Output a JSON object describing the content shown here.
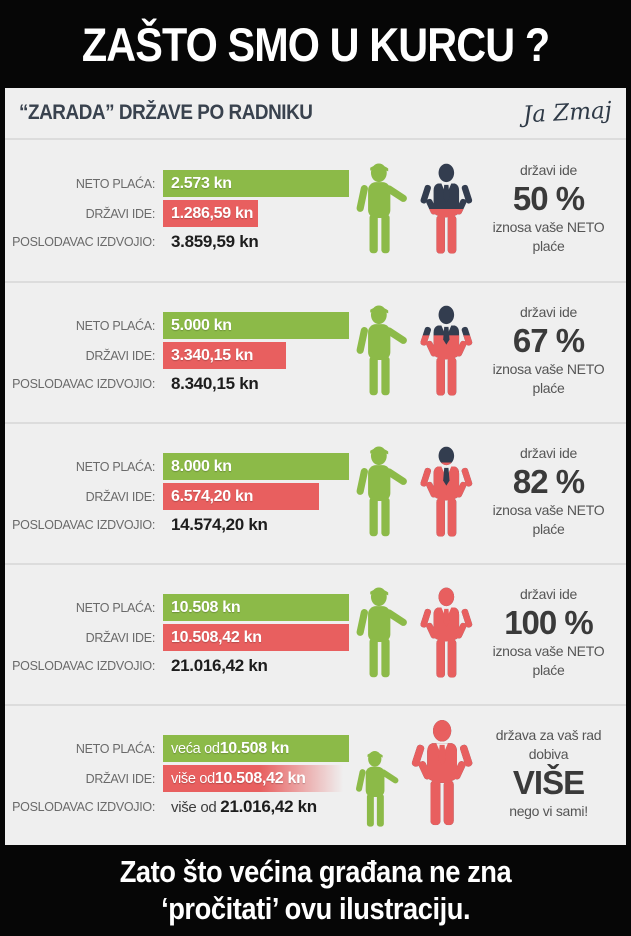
{
  "title": "ZAŠTO SMO U KURCU ?",
  "header": {
    "subtitle": "“ZARADA” DRŽAVE PO RADNIKU",
    "signature": "Ja Zmaj"
  },
  "row_labels": {
    "neto": "NETO PLAĆA:",
    "drzavi": "DRŽAVI IDE:",
    "poslodavac": "POSLODAVAC IZDVOJIO:"
  },
  "rows": [
    {
      "neto_prefix": "",
      "neto_value": "2.573 kn",
      "drzavi_prefix": "",
      "drzavi_value": "1.286,59 kn",
      "poslodavac_prefix": "",
      "poslodavac_value": "3.859,59 kn",
      "red_bar_pct": 51,
      "red_bar_fade": false,
      "figure_red_pct": 50,
      "worker_scale": 1,
      "state_scale": 1,
      "caption_top": "državi ide",
      "caption_big": "50 %",
      "caption_bottom": "iznosa vaše NETO plaće"
    },
    {
      "neto_prefix": "",
      "neto_value": "5.000 kn",
      "drzavi_prefix": "",
      "drzavi_value": "3.340,15 kn",
      "poslodavac_prefix": "",
      "poslodavac_value": "8.340,15 kn",
      "red_bar_pct": 66,
      "red_bar_fade": false,
      "figure_red_pct": 67,
      "worker_scale": 1,
      "state_scale": 1,
      "caption_top": "državi ide",
      "caption_big": "67 %",
      "caption_bottom": "iznosa vaše NETO plaće"
    },
    {
      "neto_prefix": "",
      "neto_value": "8.000 kn",
      "drzavi_prefix": "",
      "drzavi_value": "6.574,20 kn",
      "poslodavac_prefix": "",
      "poslodavac_value": "14.574,20 kn",
      "red_bar_pct": 84,
      "red_bar_fade": false,
      "figure_red_pct": 82,
      "worker_scale": 1,
      "state_scale": 1,
      "caption_top": "državi ide",
      "caption_big": "82 %",
      "caption_bottom": "iznosa vaše NETO plaće"
    },
    {
      "neto_prefix": "",
      "neto_value": "10.508 kn",
      "drzavi_prefix": "",
      "drzavi_value": "10.508,42 kn",
      "poslodavac_prefix": "",
      "poslodavac_value": "21.016,42 kn",
      "red_bar_pct": 100,
      "red_bar_fade": false,
      "figure_red_pct": 100,
      "worker_scale": 1,
      "state_scale": 1,
      "caption_top": "državi ide",
      "caption_big": "100 %",
      "caption_bottom": "iznosa vaše NETO plaće"
    },
    {
      "neto_prefix": "veća od ",
      "neto_value": "10.508 kn",
      "drzavi_prefix": "više od ",
      "drzavi_value": "10.508,42 kn",
      "poslodavac_prefix": "više od ",
      "poslodavac_value": "21.016,42 kn",
      "red_bar_pct": 100,
      "red_bar_fade": true,
      "figure_red_pct": 100,
      "worker_scale": 0.85,
      "state_scale": 1.18,
      "caption_top": "država za vaš rad dobiva",
      "caption_big": "VIŠE",
      "caption_bottom": "nego vi sami!"
    }
  ],
  "footer": {
    "line1": "Zato što većina građana ne zna",
    "line2": "‘pročitati’ ovu ilustraciju."
  },
  "colors": {
    "green": "#8cba48",
    "red": "#e85f5f",
    "navy": "#333d4f",
    "panel": "#efefef",
    "label_gray": "#6a6a6a",
    "caption_dark": "#3a3a3a"
  },
  "chart_data": {
    "type": "bar",
    "title": "“ZARADA” DRŽAVE PO RADNIKU",
    "series_labels": [
      "NETO PLAĆA",
      "DRŽAVI IDE",
      "POSLODAVAC IZDVOJIO"
    ],
    "rows": [
      {
        "neto_placa": "2.573 kn",
        "drzavi_ide": "1.286,59 kn",
        "poslodavac_izdvojio": "3.859,59 kn",
        "drzavi_ide_pct_neto": "50 %"
      },
      {
        "neto_placa": "5.000 kn",
        "drzavi_ide": "3.340,15 kn",
        "poslodavac_izdvojio": "8.340,15 kn",
        "drzavi_ide_pct_neto": "67 %"
      },
      {
        "neto_placa": "8.000 kn",
        "drzavi_ide": "6.574,20 kn",
        "poslodavac_izdvojio": "14.574,20 kn",
        "drzavi_ide_pct_neto": "82 %"
      },
      {
        "neto_placa": "10.508 kn",
        "drzavi_ide": "10.508,42 kn",
        "poslodavac_izdvojio": "21.016,42 kn",
        "drzavi_ide_pct_neto": "100 %"
      },
      {
        "neto_placa": "veća od 10.508 kn",
        "drzavi_ide": "više od 10.508,42 kn",
        "poslodavac_izdvojio": "više od 21.016,42 kn",
        "drzavi_ide_pct_neto": "VIŠE nego vi sami!"
      }
    ],
    "legend_position": "none",
    "grid": false
  }
}
